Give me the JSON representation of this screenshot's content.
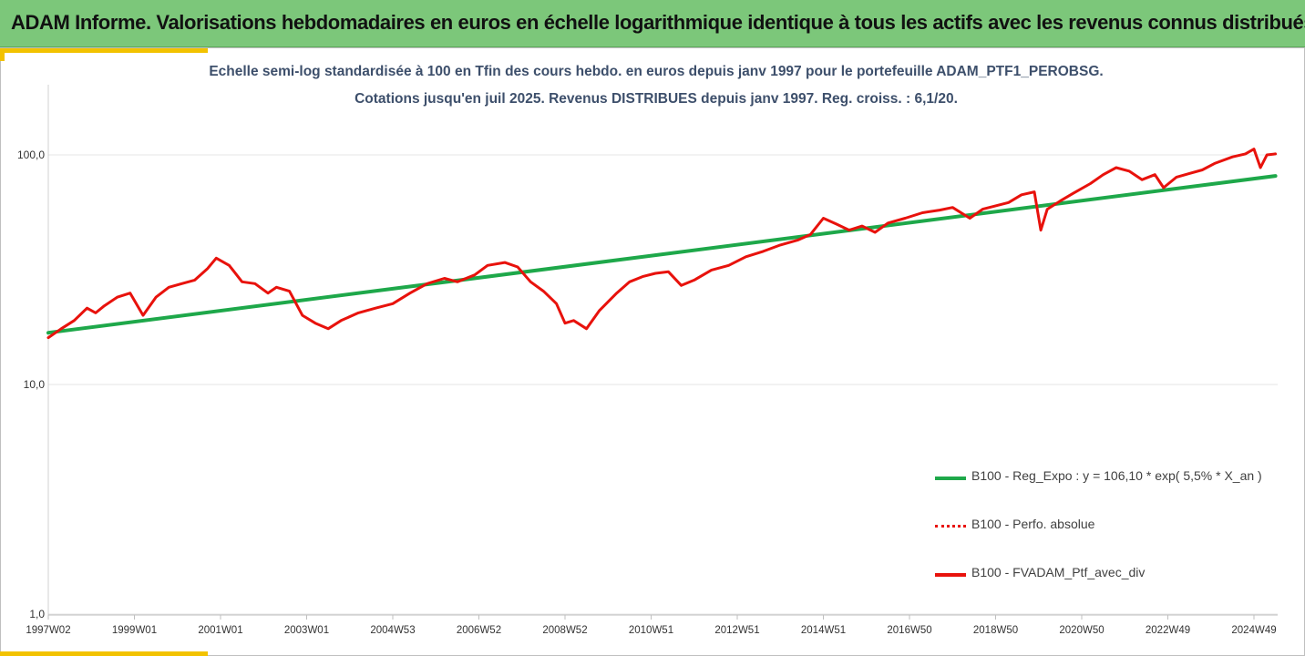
{
  "banner": {
    "title": "ADAM Informe. Valorisations hebdomadaires en euros en échelle logarithmique identique à tous les actifs avec les revenus connus distribués"
  },
  "colors": {
    "banner_bg": "#7cc77a",
    "accent": "#f2c200",
    "regression_line": "#1ea84a",
    "portfolio_line": "#e8120c",
    "gridline": "#e6e6e6"
  },
  "chart_data": {
    "type": "line",
    "title": "Echelle semi-log standardisée  à 100 en Tfin des cours hebdo.  en euros depuis janv 1997 pour le portefeuille ADAM_PTF1_PEROBSG.",
    "subtitle": "Cotations jusqu'en juil 2025. Revenus DISTRIBUES depuis janv 1997. Reg. croiss. : 6,1/20.",
    "y_scale": "log",
    "ylim": [
      1,
      160
    ],
    "y_ticks": [
      {
        "value": 1,
        "label": "1,0"
      },
      {
        "value": 10,
        "label": "10,0"
      },
      {
        "value": 100,
        "label": "100,0"
      }
    ],
    "xlim": [
      1997.0,
      2025.55
    ],
    "x_ticks": [
      {
        "value": 1997.0,
        "label": "1997W02"
      },
      {
        "value": 1999.0,
        "label": "1999W01"
      },
      {
        "value": 2001.0,
        "label": "2001W01"
      },
      {
        "value": 2003.0,
        "label": "2003W01"
      },
      {
        "value": 2005.0,
        "label": "2004W53"
      },
      {
        "value": 2007.0,
        "label": "2006W52"
      },
      {
        "value": 2009.0,
        "label": "2008W52"
      },
      {
        "value": 2011.0,
        "label": "2010W51"
      },
      {
        "value": 2013.0,
        "label": "2012W51"
      },
      {
        "value": 2015.0,
        "label": "2014W51"
      },
      {
        "value": 2017.0,
        "label": "2016W50"
      },
      {
        "value": 2019.0,
        "label": "2018W50"
      },
      {
        "value": 2021.0,
        "label": "2020W50"
      },
      {
        "value": 2023.0,
        "label": "2022W49"
      },
      {
        "value": 2025.0,
        "label": "2024W49"
      }
    ],
    "grid": "horizontal",
    "legend_position": "bottom-right",
    "series": [
      {
        "name": "B100 - Reg_Expo : y = 106,10 * exp( 5,5% *  X_an )",
        "style": "solid",
        "color": "#1ea84a",
        "x": [
          1997.0,
          2025.5
        ],
        "y": [
          16.8,
          81.0
        ]
      },
      {
        "name": "B100 - Perfo. absolue",
        "style": "dotted",
        "color": "#e8120c",
        "x": [],
        "y": []
      },
      {
        "name": "B100 - FVADAM_Ptf_avec_div",
        "style": "solid",
        "color": "#e8120c",
        "x": [
          1997.0,
          1997.3,
          1997.6,
          1997.9,
          1998.1,
          1998.3,
          1998.6,
          1998.9,
          1999.2,
          1999.5,
          1999.8,
          2000.1,
          2000.4,
          2000.7,
          2000.9,
          2001.2,
          2001.5,
          2001.8,
          2002.1,
          2002.3,
          2002.6,
          2002.9,
          2003.2,
          2003.5,
          2003.8,
          2004.2,
          2004.6,
          2005.0,
          2005.4,
          2005.8,
          2006.2,
          2006.5,
          2006.9,
          2007.2,
          2007.6,
          2007.9,
          2008.2,
          2008.5,
          2008.8,
          2009.0,
          2009.2,
          2009.5,
          2009.8,
          2010.2,
          2010.5,
          2010.8,
          2011.1,
          2011.4,
          2011.7,
          2012.0,
          2012.4,
          2012.8,
          2013.2,
          2013.6,
          2014.0,
          2014.4,
          2014.7,
          2015.0,
          2015.3,
          2015.6,
          2015.9,
          2016.2,
          2016.5,
          2016.9,
          2017.3,
          2017.7,
          2018.0,
          2018.4,
          2018.7,
          2019.0,
          2019.3,
          2019.6,
          2019.9,
          2020.05,
          2020.2,
          2020.5,
          2020.8,
          2021.2,
          2021.5,
          2021.8,
          2022.1,
          2022.4,
          2022.7,
          2022.9,
          2023.2,
          2023.5,
          2023.8,
          2024.1,
          2024.5,
          2024.8,
          2025.0,
          2025.15,
          2025.3,
          2025.5
        ],
        "y": [
          16.0,
          17.5,
          19.0,
          21.5,
          20.5,
          22.0,
          24.0,
          25.0,
          20.0,
          24.0,
          26.5,
          27.5,
          28.5,
          32.0,
          35.5,
          33.0,
          28.0,
          27.5,
          25.0,
          26.5,
          25.5,
          20.0,
          18.5,
          17.5,
          19.0,
          20.5,
          21.5,
          22.5,
          25.0,
          27.5,
          29.0,
          28.0,
          30.0,
          33.0,
          34.0,
          32.5,
          28.0,
          25.5,
          22.5,
          18.5,
          19.0,
          17.5,
          21.0,
          25.0,
          28.0,
          29.5,
          30.5,
          31.0,
          27.0,
          28.5,
          31.5,
          33.0,
          36.0,
          38.0,
          40.5,
          42.5,
          45.0,
          53.0,
          50.0,
          47.0,
          49.0,
          46.0,
          50.5,
          53.0,
          56.0,
          57.5,
          59.0,
          53.0,
          58.0,
          60.0,
          62.0,
          67.0,
          69.0,
          47.0,
          58.0,
          63.0,
          68.0,
          75.0,
          82.0,
          88.0,
          85.0,
          78.0,
          82.0,
          72.0,
          80.0,
          83.0,
          86.0,
          92.0,
          98.0,
          101.0,
          106.0,
          88.0,
          100.0,
          101.0
        ]
      }
    ]
  }
}
